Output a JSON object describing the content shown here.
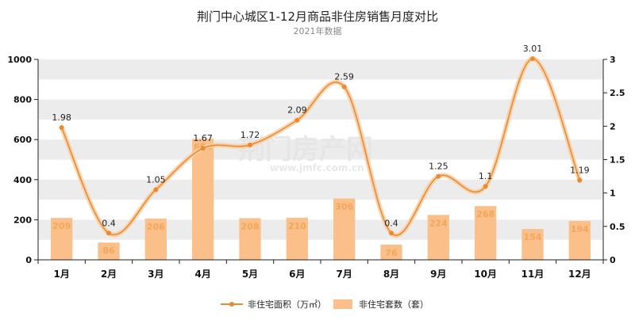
{
  "chart_data": {
    "type": "bar+line",
    "title": "荆门中心城区1-12月商品非住房销售月度对比",
    "subtitle": "2021年数据",
    "categories": [
      "1月",
      "2月",
      "3月",
      "4月",
      "5月",
      "6月",
      "7月",
      "8月",
      "9月",
      "10月",
      "11月",
      "12月"
    ],
    "series": [
      {
        "name": "非住宅套数（套）",
        "type": "bar",
        "axis": "left",
        "values": [
          209,
          86,
          206,
          604,
          208,
          210,
          306,
          76,
          224,
          268,
          154,
          194
        ],
        "color": "#fbc08a"
      },
      {
        "name": "非住宅面积（万㎡）",
        "type": "line",
        "axis": "right",
        "values": [
          1.98,
          0.4,
          1.05,
          1.67,
          1.72,
          2.09,
          2.59,
          0.4,
          1.25,
          1.1,
          3.01,
          1.19
        ],
        "color": "#ee8a2e"
      }
    ],
    "y_left": {
      "ylim": [
        0,
        1000
      ],
      "ticks": [
        0,
        200,
        400,
        600,
        800,
        1000
      ]
    },
    "y_right": {
      "ylim": [
        0,
        3
      ],
      "ticks": [
        0,
        0.5,
        1,
        1.5,
        2,
        2.5,
        3
      ]
    },
    "grid": "alternating bands",
    "legend_position": "bottom"
  },
  "watermark": {
    "main": "荆门房产网",
    "sub": "www.jmfc.com.cn"
  }
}
